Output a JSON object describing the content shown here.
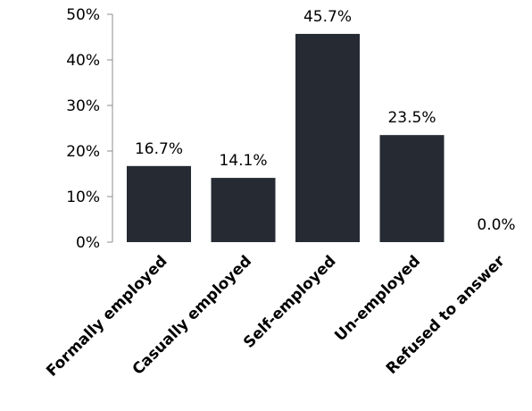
{
  "chart_data": {
    "type": "bar",
    "categories": [
      "Formally employed",
      "Casually employed",
      "Self-employed",
      "Un-employed",
      "Refused to answer"
    ],
    "values": [
      16.7,
      14.1,
      45.7,
      23.5,
      0.0
    ],
    "data_labels": [
      "16.7%",
      "14.1%",
      "45.7%",
      "23.5%",
      "0.0%"
    ],
    "title": "",
    "xlabel": "",
    "ylabel": "",
    "ylim": [
      0,
      50
    ],
    "y_ticks": [
      "0%",
      "10%",
      "20%",
      "30%",
      "40%",
      "50%"
    ],
    "grid": false,
    "legend": "none",
    "bar_color": "#262a33"
  }
}
